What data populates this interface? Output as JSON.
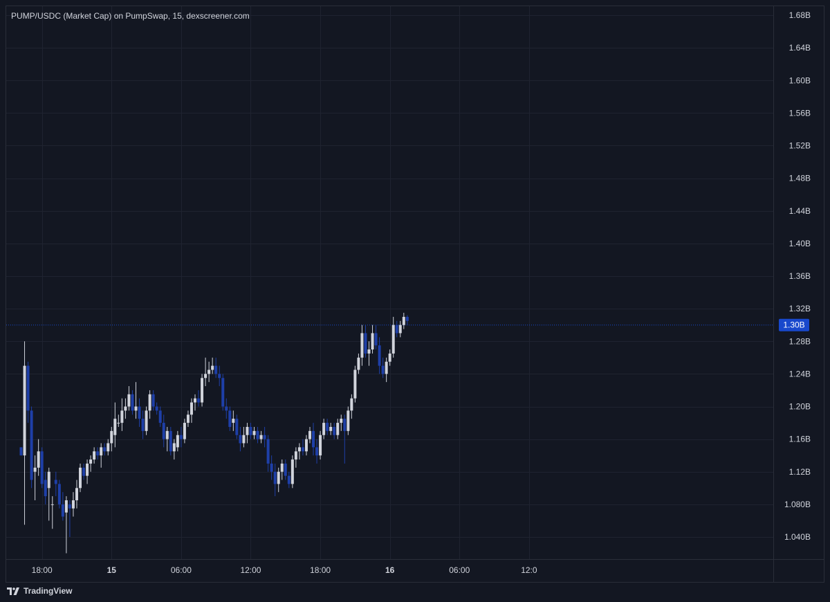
{
  "title": "PUMP/USDC (Market Cap) on PumpSwap, 15, dexscreener.com",
  "brand": "TradingView",
  "colors": {
    "background": "#131722",
    "grid": "#1f2330",
    "text": "#d1d4dc",
    "up": "#d1d4dc",
    "down": "#1e3fa8",
    "last_price": "#1848cc"
  },
  "chart_data": {
    "type": "candlestick",
    "interval": "15",
    "y_ticks": [
      "1.68B",
      "1.64B",
      "1.60B",
      "1.56B",
      "1.52B",
      "1.48B",
      "1.44B",
      "1.40B",
      "1.36B",
      "1.32B",
      "1.28B",
      "1.24B",
      "1.20B",
      "1.16B",
      "1.12B",
      "1.080B",
      "1.040B"
    ],
    "y_tick_values": [
      1.68,
      1.64,
      1.6,
      1.56,
      1.52,
      1.48,
      1.44,
      1.4,
      1.36,
      1.32,
      1.28,
      1.24,
      1.2,
      1.16,
      1.12,
      1.08,
      1.04
    ],
    "x_ticks": [
      "18:00",
      "15",
      "06:00",
      "12:00",
      "18:00",
      "16",
      "06:00",
      "12:0"
    ],
    "x_tick_bold": [
      false,
      true,
      false,
      false,
      false,
      true,
      false,
      false
    ],
    "x_tick_index": [
      6,
      26,
      46,
      66,
      86,
      106,
      126,
      146
    ],
    "last_price": 1.3,
    "last_price_label": "1.30B",
    "candles": [
      [
        1.15,
        1.15,
        1.14,
        1.14
      ],
      [
        1.14,
        1.28,
        1.055,
        1.25
      ],
      [
        1.25,
        1.255,
        1.18,
        1.195
      ],
      [
        1.195,
        1.2,
        1.1,
        1.11
      ],
      [
        1.12,
        1.14,
        1.085,
        1.125
      ],
      [
        1.125,
        1.16,
        1.115,
        1.145
      ],
      [
        1.145,
        1.15,
        1.1,
        1.105
      ],
      [
        1.11,
        1.12,
        1.08,
        1.09
      ],
      [
        1.1,
        1.125,
        1.06,
        1.12
      ],
      [
        1.08,
        1.09,
        1.05,
        1.08
      ],
      [
        1.11,
        1.12,
        1.09,
        1.105
      ],
      [
        1.105,
        1.11,
        1.075,
        1.08
      ],
      [
        1.08,
        1.095,
        1.06,
        1.065
      ],
      [
        1.07,
        1.09,
        1.02,
        1.085
      ],
      [
        1.08,
        1.085,
        1.04,
        1.075
      ],
      [
        1.075,
        1.095,
        1.065,
        1.085
      ],
      [
        1.085,
        1.11,
        1.075,
        1.1
      ],
      [
        1.1,
        1.13,
        1.095,
        1.125
      ],
      [
        1.125,
        1.13,
        1.11,
        1.115
      ],
      [
        1.115,
        1.135,
        1.105,
        1.13
      ],
      [
        1.13,
        1.14,
        1.12,
        1.135
      ],
      [
        1.135,
        1.15,
        1.13,
        1.145
      ],
      [
        1.145,
        1.15,
        1.135,
        1.14
      ],
      [
        1.14,
        1.155,
        1.125,
        1.15
      ],
      [
        1.15,
        1.155,
        1.14,
        1.145
      ],
      [
        1.145,
        1.16,
        1.14,
        1.155
      ],
      [
        1.155,
        1.175,
        1.145,
        1.17
      ],
      [
        1.165,
        1.205,
        1.15,
        1.185
      ],
      [
        1.18,
        1.19,
        1.175,
        1.18
      ],
      [
        1.18,
        1.21,
        1.17,
        1.195
      ],
      [
        1.195,
        1.21,
        1.185,
        1.2
      ],
      [
        1.2,
        1.225,
        1.195,
        1.215
      ],
      [
        1.215,
        1.22,
        1.19,
        1.195
      ],
      [
        1.195,
        1.23,
        1.185,
        1.2
      ],
      [
        1.2,
        1.21,
        1.175,
        1.185
      ],
      [
        1.185,
        1.195,
        1.16,
        1.17
      ],
      [
        1.17,
        1.2,
        1.165,
        1.195
      ],
      [
        1.195,
        1.22,
        1.185,
        1.215
      ],
      [
        1.215,
        1.22,
        1.195,
        1.2
      ],
      [
        1.2,
        1.205,
        1.19,
        1.195
      ],
      [
        1.195,
        1.2,
        1.175,
        1.18
      ],
      [
        1.18,
        1.19,
        1.15,
        1.16
      ],
      [
        1.16,
        1.175,
        1.145,
        1.17
      ],
      [
        1.17,
        1.175,
        1.14,
        1.145
      ],
      [
        1.145,
        1.16,
        1.135,
        1.155
      ],
      [
        1.15,
        1.17,
        1.145,
        1.165
      ],
      [
        1.165,
        1.175,
        1.15,
        1.16
      ],
      [
        1.16,
        1.185,
        1.155,
        1.18
      ],
      [
        1.18,
        1.195,
        1.175,
        1.19
      ],
      [
        1.19,
        1.21,
        1.18,
        1.205
      ],
      [
        1.205,
        1.215,
        1.195,
        1.21
      ],
      [
        1.21,
        1.22,
        1.2,
        1.205
      ],
      [
        1.205,
        1.24,
        1.2,
        1.235
      ],
      [
        1.235,
        1.26,
        1.225,
        1.24
      ],
      [
        1.24,
        1.255,
        1.23,
        1.245
      ],
      [
        1.245,
        1.26,
        1.24,
        1.25
      ],
      [
        1.25,
        1.26,
        1.235,
        1.24
      ],
      [
        1.24,
        1.25,
        1.225,
        1.235
      ],
      [
        1.235,
        1.24,
        1.195,
        1.2
      ],
      [
        1.2,
        1.21,
        1.185,
        1.195
      ],
      [
        1.195,
        1.2,
        1.17,
        1.175
      ],
      [
        1.18,
        1.195,
        1.17,
        1.185
      ],
      [
        1.185,
        1.19,
        1.16,
        1.165
      ],
      [
        1.165,
        1.175,
        1.145,
        1.155
      ],
      [
        1.155,
        1.175,
        1.15,
        1.165
      ],
      [
        1.165,
        1.18,
        1.155,
        1.175
      ],
      [
        1.175,
        1.18,
        1.16,
        1.165
      ],
      [
        1.165,
        1.175,
        1.16,
        1.17
      ],
      [
        1.17,
        1.175,
        1.155,
        1.16
      ],
      [
        1.16,
        1.17,
        1.155,
        1.165
      ],
      [
        1.165,
        1.175,
        1.15,
        1.16
      ],
      [
        1.16,
        1.165,
        1.12,
        1.13
      ],
      [
        1.13,
        1.14,
        1.11,
        1.12
      ],
      [
        1.12,
        1.13,
        1.09,
        1.105
      ],
      [
        1.105,
        1.125,
        1.095,
        1.12
      ],
      [
        1.12,
        1.135,
        1.11,
        1.13
      ],
      [
        1.13,
        1.135,
        1.11,
        1.115
      ],
      [
        1.115,
        1.12,
        1.1,
        1.105
      ],
      [
        1.105,
        1.14,
        1.1,
        1.135
      ],
      [
        1.135,
        1.15,
        1.125,
        1.145
      ],
      [
        1.145,
        1.155,
        1.135,
        1.15
      ],
      [
        1.15,
        1.16,
        1.14,
        1.145
      ],
      [
        1.145,
        1.165,
        1.14,
        1.16
      ],
      [
        1.16,
        1.175,
        1.155,
        1.17
      ],
      [
        1.17,
        1.18,
        1.14,
        1.15
      ],
      [
        1.15,
        1.16,
        1.13,
        1.14
      ],
      [
        1.14,
        1.17,
        1.135,
        1.165
      ],
      [
        1.165,
        1.185,
        1.16,
        1.18
      ],
      [
        1.18,
        1.185,
        1.165,
        1.17
      ],
      [
        1.17,
        1.18,
        1.165,
        1.175
      ],
      [
        1.175,
        1.18,
        1.16,
        1.165
      ],
      [
        1.165,
        1.185,
        1.16,
        1.18
      ],
      [
        1.18,
        1.19,
        1.17,
        1.185
      ],
      [
        1.185,
        1.19,
        1.13,
        1.17
      ],
      [
        1.17,
        1.2,
        1.165,
        1.195
      ],
      [
        1.195,
        1.215,
        1.185,
        1.21
      ],
      [
        1.21,
        1.25,
        1.205,
        1.245
      ],
      [
        1.245,
        1.265,
        1.24,
        1.26
      ],
      [
        1.26,
        1.3,
        1.25,
        1.29
      ],
      [
        1.29,
        1.3,
        1.26,
        1.265
      ],
      [
        1.265,
        1.28,
        1.25,
        1.27
      ],
      [
        1.27,
        1.3,
        1.265,
        1.29
      ],
      [
        1.29,
        1.3,
        1.27,
        1.275
      ],
      [
        1.275,
        1.285,
        1.24,
        1.25
      ],
      [
        1.25,
        1.26,
        1.235,
        1.24
      ],
      [
        1.24,
        1.26,
        1.23,
        1.255
      ],
      [
        1.255,
        1.27,
        1.25,
        1.265
      ],
      [
        1.265,
        1.31,
        1.26,
        1.3
      ],
      [
        1.3,
        1.305,
        1.285,
        1.29
      ],
      [
        1.29,
        1.305,
        1.285,
        1.3
      ],
      [
        1.3,
        1.315,
        1.295,
        1.31
      ],
      [
        1.31,
        1.312,
        1.3,
        1.305
      ]
    ]
  }
}
